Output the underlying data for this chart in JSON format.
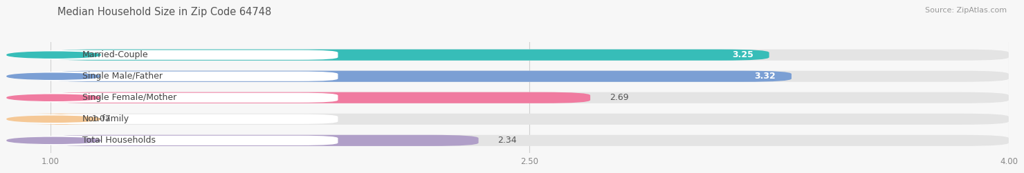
{
  "title": "Median Household Size in Zip Code 64748",
  "source": "Source: ZipAtlas.com",
  "categories": [
    "Married-Couple",
    "Single Male/Father",
    "Single Female/Mother",
    "Non-family",
    "Total Households"
  ],
  "values": [
    3.25,
    3.32,
    2.69,
    1.07,
    2.34
  ],
  "bar_colors": [
    "#37bdb8",
    "#7b9fd4",
    "#f07ba0",
    "#f5c896",
    "#b09fc8"
  ],
  "label_colors": [
    "white",
    "white",
    "#555555",
    "#555555",
    "#555555"
  ],
  "xlim": [
    1.0,
    4.0
  ],
  "xticks": [
    1.0,
    2.5,
    4.0
  ],
  "xtick_labels": [
    "1.00",
    "2.50",
    "4.00"
  ],
  "bar_height": 0.52,
  "background_color": "#f7f7f7",
  "bar_bg_color": "#e4e4e4",
  "title_fontsize": 10.5,
  "source_fontsize": 8,
  "value_fontsize": 9,
  "category_fontsize": 9
}
